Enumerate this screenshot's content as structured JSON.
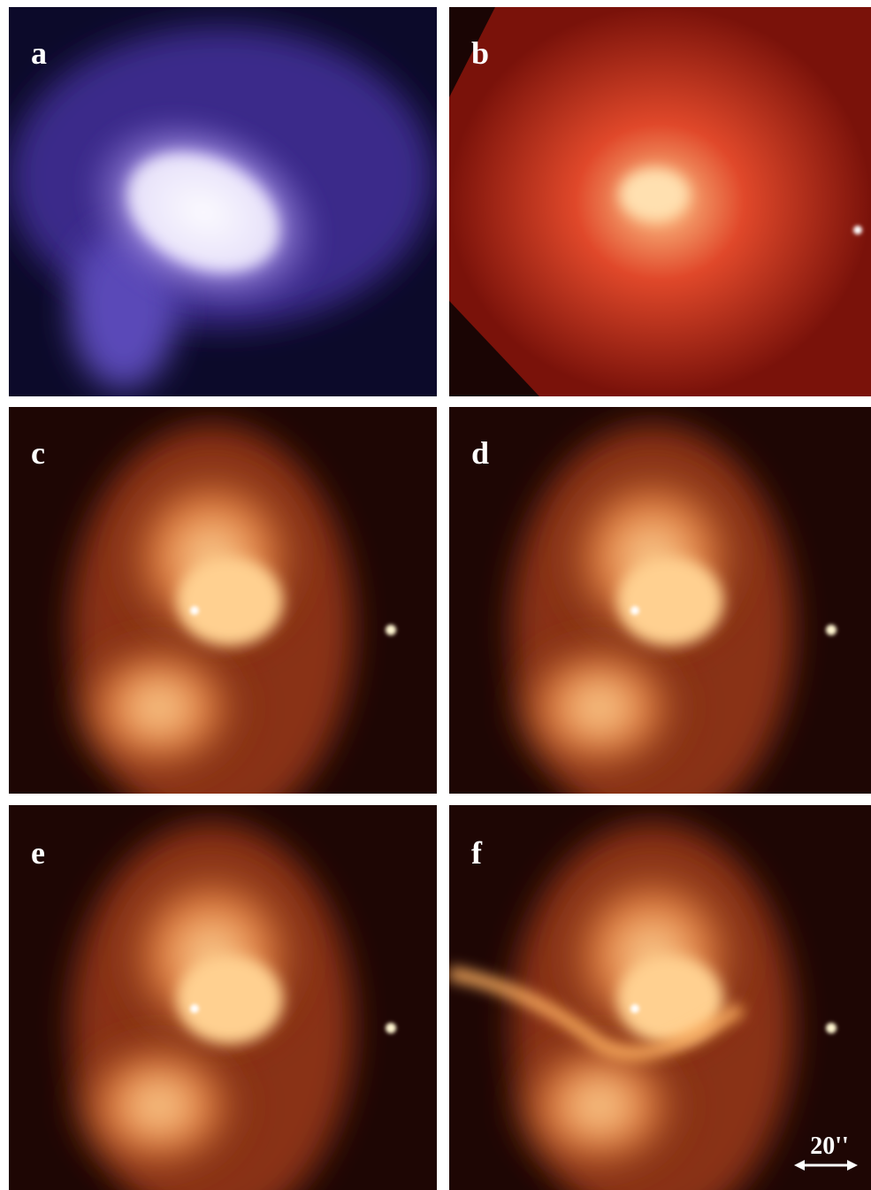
{
  "panels": [
    {
      "label": "a"
    },
    {
      "label": "b"
    },
    {
      "label": "c"
    },
    {
      "label": "d"
    },
    {
      "label": "e"
    },
    {
      "label": "f"
    }
  ],
  "scale_bar": {
    "label": "20''"
  }
}
